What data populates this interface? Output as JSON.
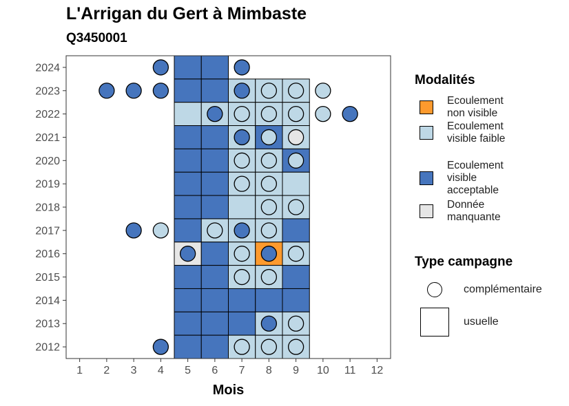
{
  "title": "L'Arrigan du Gert à Mimbaste",
  "subtitle": "Q3450001",
  "chart_data": {
    "type": "heatmap",
    "xlabel": "Mois",
    "x_ticks": [
      1,
      2,
      3,
      4,
      5,
      6,
      7,
      8,
      9,
      10,
      11,
      12
    ],
    "y_ticks": [
      2012,
      2013,
      2014,
      2015,
      2016,
      2017,
      2018,
      2019,
      2020,
      2021,
      2022,
      2023,
      2024
    ],
    "xlim": [
      0.5,
      12.5
    ],
    "ylim": [
      2011.5,
      2024.5
    ],
    "grid": false,
    "legend_placement": "right",
    "colors": {
      "non_visible": "#fd9a2e",
      "faible": "#bed8e6",
      "acceptable": "#4675bd",
      "manquante": "#e6e6e6"
    },
    "modalites_title": "Modalités",
    "modalites": [
      {
        "key": "non_visible",
        "label": "Ecoulement non visible"
      },
      {
        "key": "faible",
        "label": "Ecoulement visible faible"
      },
      {
        "key": "acceptable",
        "label": "Ecoulement visible acceptable"
      },
      {
        "key": "manquante",
        "label": "Donnée manquante"
      }
    ],
    "type_title": "Type campagne",
    "types": [
      {
        "key": "complementaire",
        "label": "complémentaire"
      },
      {
        "key": "usuelle",
        "label": "usuelle"
      }
    ],
    "usuelle": [
      {
        "year": 2024,
        "month": 5,
        "m": "acceptable"
      },
      {
        "year": 2024,
        "month": 6,
        "m": "acceptable"
      },
      {
        "year": 2023,
        "month": 5,
        "m": "acceptable"
      },
      {
        "year": 2023,
        "month": 6,
        "m": "acceptable"
      },
      {
        "year": 2023,
        "month": 7,
        "m": "faible"
      },
      {
        "year": 2023,
        "month": 8,
        "m": "faible"
      },
      {
        "year": 2023,
        "month": 9,
        "m": "faible"
      },
      {
        "year": 2022,
        "month": 5,
        "m": "faible"
      },
      {
        "year": 2022,
        "month": 6,
        "m": "faible"
      },
      {
        "year": 2022,
        "month": 7,
        "m": "faible"
      },
      {
        "year": 2022,
        "month": 8,
        "m": "faible"
      },
      {
        "year": 2022,
        "month": 9,
        "m": "faible"
      },
      {
        "year": 2021,
        "month": 5,
        "m": "acceptable"
      },
      {
        "year": 2021,
        "month": 6,
        "m": "acceptable"
      },
      {
        "year": 2021,
        "month": 7,
        "m": "faible"
      },
      {
        "year": 2021,
        "month": 8,
        "m": "acceptable"
      },
      {
        "year": 2021,
        "month": 9,
        "m": "faible"
      },
      {
        "year": 2020,
        "month": 5,
        "m": "acceptable"
      },
      {
        "year": 2020,
        "month": 6,
        "m": "acceptable"
      },
      {
        "year": 2020,
        "month": 7,
        "m": "faible"
      },
      {
        "year": 2020,
        "month": 8,
        "m": "faible"
      },
      {
        "year": 2020,
        "month": 9,
        "m": "acceptable"
      },
      {
        "year": 2019,
        "month": 5,
        "m": "acceptable"
      },
      {
        "year": 2019,
        "month": 6,
        "m": "acceptable"
      },
      {
        "year": 2019,
        "month": 7,
        "m": "faible"
      },
      {
        "year": 2019,
        "month": 8,
        "m": "faible"
      },
      {
        "year": 2019,
        "month": 9,
        "m": "faible"
      },
      {
        "year": 2018,
        "month": 5,
        "m": "acceptable"
      },
      {
        "year": 2018,
        "month": 6,
        "m": "acceptable"
      },
      {
        "year": 2018,
        "month": 7,
        "m": "faible"
      },
      {
        "year": 2018,
        "month": 8,
        "m": "faible"
      },
      {
        "year": 2018,
        "month": 9,
        "m": "faible"
      },
      {
        "year": 2017,
        "month": 5,
        "m": "acceptable"
      },
      {
        "year": 2017,
        "month": 6,
        "m": "faible"
      },
      {
        "year": 2017,
        "month": 7,
        "m": "faible"
      },
      {
        "year": 2017,
        "month": 8,
        "m": "faible"
      },
      {
        "year": 2017,
        "month": 9,
        "m": "acceptable"
      },
      {
        "year": 2016,
        "month": 5,
        "m": "manquante"
      },
      {
        "year": 2016,
        "month": 6,
        "m": "acceptable"
      },
      {
        "year": 2016,
        "month": 7,
        "m": "faible"
      },
      {
        "year": 2016,
        "month": 8,
        "m": "non_visible"
      },
      {
        "year": 2016,
        "month": 9,
        "m": "faible"
      },
      {
        "year": 2015,
        "month": 5,
        "m": "acceptable"
      },
      {
        "year": 2015,
        "month": 6,
        "m": "acceptable"
      },
      {
        "year": 2015,
        "month": 7,
        "m": "faible"
      },
      {
        "year": 2015,
        "month": 8,
        "m": "faible"
      },
      {
        "year": 2015,
        "month": 9,
        "m": "acceptable"
      },
      {
        "year": 2014,
        "month": 5,
        "m": "acceptable"
      },
      {
        "year": 2014,
        "month": 6,
        "m": "acceptable"
      },
      {
        "year": 2014,
        "month": 7,
        "m": "acceptable"
      },
      {
        "year": 2014,
        "month": 8,
        "m": "acceptable"
      },
      {
        "year": 2014,
        "month": 9,
        "m": "acceptable"
      },
      {
        "year": 2013,
        "month": 5,
        "m": "acceptable"
      },
      {
        "year": 2013,
        "month": 6,
        "m": "acceptable"
      },
      {
        "year": 2013,
        "month": 7,
        "m": "acceptable"
      },
      {
        "year": 2013,
        "month": 8,
        "m": "faible"
      },
      {
        "year": 2013,
        "month": 9,
        "m": "faible"
      },
      {
        "year": 2012,
        "month": 5,
        "m": "acceptable"
      },
      {
        "year": 2012,
        "month": 6,
        "m": "acceptable"
      },
      {
        "year": 2012,
        "month": 7,
        "m": "faible"
      },
      {
        "year": 2012,
        "month": 8,
        "m": "faible"
      },
      {
        "year": 2012,
        "month": 9,
        "m": "faible"
      }
    ],
    "complementaire": [
      {
        "year": 2024,
        "month": 4,
        "m": "acceptable"
      },
      {
        "year": 2024,
        "month": 7,
        "m": "acceptable"
      },
      {
        "year": 2023,
        "month": 2,
        "m": "acceptable"
      },
      {
        "year": 2023,
        "month": 3,
        "m": "acceptable"
      },
      {
        "year": 2023,
        "month": 4,
        "m": "acceptable"
      },
      {
        "year": 2023,
        "month": 7,
        "m": "acceptable"
      },
      {
        "year": 2023,
        "month": 8,
        "m": "faible"
      },
      {
        "year": 2023,
        "month": 9,
        "m": "faible"
      },
      {
        "year": 2023,
        "month": 10,
        "m": "faible"
      },
      {
        "year": 2022,
        "month": 6,
        "m": "acceptable"
      },
      {
        "year": 2022,
        "month": 7,
        "m": "faible"
      },
      {
        "year": 2022,
        "month": 8,
        "m": "faible"
      },
      {
        "year": 2022,
        "month": 9,
        "m": "faible"
      },
      {
        "year": 2022,
        "month": 10,
        "m": "faible"
      },
      {
        "year": 2022,
        "month": 11,
        "m": "acceptable"
      },
      {
        "year": 2021,
        "month": 7,
        "m": "acceptable"
      },
      {
        "year": 2021,
        "month": 8,
        "m": "faible"
      },
      {
        "year": 2021,
        "month": 9,
        "m": "manquante"
      },
      {
        "year": 2020,
        "month": 7,
        "m": "faible"
      },
      {
        "year": 2020,
        "month": 8,
        "m": "faible"
      },
      {
        "year": 2020,
        "month": 9,
        "m": "faible"
      },
      {
        "year": 2019,
        "month": 7,
        "m": "faible"
      },
      {
        "year": 2019,
        "month": 8,
        "m": "faible"
      },
      {
        "year": 2018,
        "month": 8,
        "m": "faible"
      },
      {
        "year": 2018,
        "month": 9,
        "m": "faible"
      },
      {
        "year": 2017,
        "month": 3,
        "m": "acceptable"
      },
      {
        "year": 2017,
        "month": 4,
        "m": "faible"
      },
      {
        "year": 2017,
        "month": 6,
        "m": "faible"
      },
      {
        "year": 2017,
        "month": 7,
        "m": "acceptable"
      },
      {
        "year": 2017,
        "month": 8,
        "m": "faible"
      },
      {
        "year": 2016,
        "month": 5,
        "m": "acceptable"
      },
      {
        "year": 2016,
        "month": 7,
        "m": "faible"
      },
      {
        "year": 2016,
        "month": 8,
        "m": "acceptable"
      },
      {
        "year": 2016,
        "month": 9,
        "m": "faible"
      },
      {
        "year": 2015,
        "month": 7,
        "m": "faible"
      },
      {
        "year": 2015,
        "month": 8,
        "m": "faible"
      },
      {
        "year": 2013,
        "month": 8,
        "m": "acceptable"
      },
      {
        "year": 2013,
        "month": 9,
        "m": "faible"
      },
      {
        "year": 2012,
        "month": 4,
        "m": "acceptable"
      },
      {
        "year": 2012,
        "month": 7,
        "m": "faible"
      },
      {
        "year": 2012,
        "month": 8,
        "m": "faible"
      },
      {
        "year": 2012,
        "month": 9,
        "m": "faible"
      }
    ]
  }
}
